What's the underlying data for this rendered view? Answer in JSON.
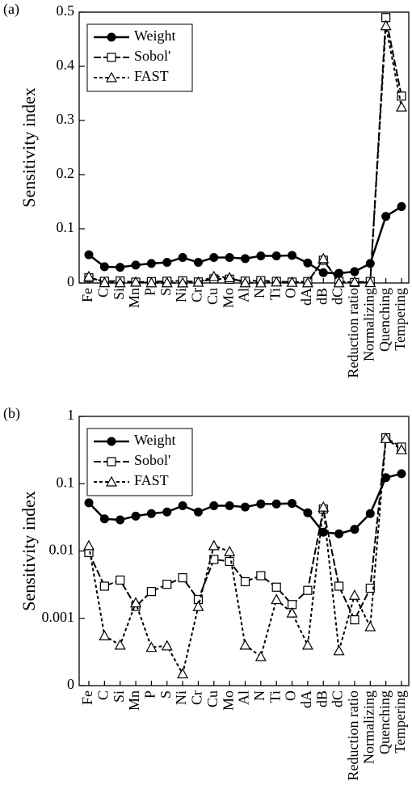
{
  "chart_data": [
    {
      "type": "line",
      "panel_label": "(a)",
      "y_label": "Sensitivity index",
      "log_scale": false,
      "legend": "upper left",
      "categories": [
        "Fe",
        "C",
        "Si",
        "Mn",
        "P",
        "S",
        "Ni",
        "Cr",
        "Cu",
        "Mo",
        "Al",
        "N",
        "Ti",
        "O",
        "dA",
        "dB",
        "dC",
        "Reduction ratio",
        "Normalizing",
        "Quenching",
        "Tempering"
      ],
      "ylim": [
        0,
        0.5
      ],
      "yticks": [
        0,
        0.1,
        0.2,
        0.3,
        0.4,
        0.5
      ],
      "series": [
        {
          "name": "Weight",
          "color": "#000000",
          "marker": "circle",
          "dash": "solid",
          "values": [
            0.052,
            0.03,
            0.029,
            0.033,
            0.036,
            0.038,
            0.047,
            0.038,
            0.047,
            0.047,
            0.045,
            0.05,
            0.05,
            0.051,
            0.037,
            0.019,
            0.018,
            0.021,
            0.036,
            0.123,
            0.141
          ]
        },
        {
          "name": "Sobol'",
          "color": "#000000",
          "marker": "square",
          "dash": "long",
          "values": [
            0.0095,
            0.003,
            0.0037,
            0.0015,
            0.0025,
            0.0032,
            0.004,
            0.0019,
            0.0075,
            0.007,
            0.0035,
            0.0043,
            0.0029,
            0.0016,
            0.0026,
            0.042,
            0.003,
            0.00095,
            0.0028,
            0.49,
            0.345
          ]
        },
        {
          "name": "FAST",
          "color": "#000000",
          "marker": "triangle",
          "dash": "short",
          "values": [
            0.012,
            0.00055,
            0.0004,
            0.0017,
            0.00037,
            0.00039,
            0.00015,
            0.0015,
            0.012,
            0.0098,
            0.0004,
            0.00027,
            0.0019,
            0.0012,
            0.0004,
            0.045,
            0.00033,
            0.0022,
            0.00075,
            0.475,
            0.325
          ]
        }
      ]
    },
    {
      "type": "line",
      "panel_label": "(b)",
      "y_label": "Sensitivity index",
      "log_scale": true,
      "legend": "upper left",
      "categories": [
        "Fe",
        "C",
        "Si",
        "Mn",
        "P",
        "S",
        "Ni",
        "Cr",
        "Cu",
        "Mo",
        "Al",
        "N",
        "Ti",
        "O",
        "dA",
        "dB",
        "dC",
        "Reduction ratio",
        "Normalizing",
        "Quenching",
        "Tempering"
      ],
      "ylim": [
        0.0001,
        1
      ],
      "yticks": [
        {
          "value": 0.0001,
          "label": "0"
        },
        0.001,
        0.01,
        0.1,
        1
      ],
      "series": [
        {
          "name": "Weight",
          "color": "#000000",
          "marker": "circle",
          "dash": "solid",
          "values": [
            0.052,
            0.03,
            0.029,
            0.033,
            0.036,
            0.038,
            0.047,
            0.038,
            0.047,
            0.047,
            0.045,
            0.05,
            0.05,
            0.051,
            0.037,
            0.019,
            0.018,
            0.021,
            0.036,
            0.123,
            0.141
          ]
        },
        {
          "name": "Sobol'",
          "color": "#000000",
          "marker": "square",
          "dash": "long",
          "values": [
            0.0095,
            0.003,
            0.0037,
            0.0015,
            0.0025,
            0.0032,
            0.004,
            0.0019,
            0.0075,
            0.007,
            0.0035,
            0.0043,
            0.0029,
            0.0016,
            0.0026,
            0.042,
            0.003,
            0.00095,
            0.0028,
            0.48,
            0.35
          ]
        },
        {
          "name": "FAST",
          "color": "#000000",
          "marker": "triangle",
          "dash": "short",
          "values": [
            0.012,
            0.00055,
            0.0004,
            0.0017,
            0.00037,
            0.00039,
            0.00015,
            0.0015,
            0.012,
            0.0098,
            0.0004,
            0.00027,
            0.0019,
            0.0012,
            0.0004,
            0.045,
            0.00033,
            0.0022,
            0.00075,
            0.47,
            0.32
          ]
        }
      ]
    }
  ]
}
